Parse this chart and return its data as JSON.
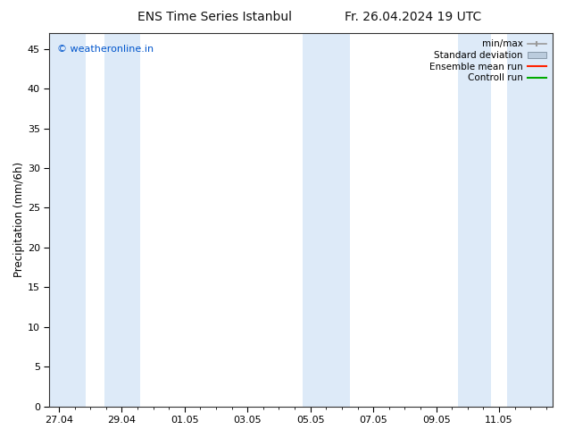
{
  "title": "ENS Time Series Istanbul",
  "title_right": "Fr. 26.04.2024 19 UTC",
  "ylabel": "Precipitation (mm/6h)",
  "xlabel": "",
  "ylim": [
    0,
    47
  ],
  "yticks": [
    0,
    5,
    10,
    15,
    20,
    25,
    30,
    35,
    40,
    45
  ],
  "xtick_labels": [
    "27.04",
    "29.04",
    "01.05",
    "03.05",
    "05.05",
    "07.05",
    "09.05",
    "11.05"
  ],
  "xtick_positions": [
    0,
    2,
    4,
    6,
    8,
    10,
    12,
    14
  ],
  "xlim": [
    -0.3,
    15.7
  ],
  "watermark": "© weatheronline.in",
  "watermark_color": "#0055cc",
  "background_color": "#ffffff",
  "shaded_band_color": "#ddeaf8",
  "shaded_bands": [
    [
      -0.3,
      0.85
    ],
    [
      1.45,
      2.6
    ],
    [
      7.75,
      9.25
    ],
    [
      12.7,
      13.75
    ],
    [
      14.25,
      15.7
    ]
  ],
  "legend_labels": [
    "min/max",
    "Standard deviation",
    "Ensemble mean run",
    "Controll run"
  ],
  "minmax_color": "#999999",
  "std_color": "#bbccdd",
  "mean_color": "#ff2200",
  "ctrl_color": "#00aa00",
  "title_fontsize": 10,
  "tick_fontsize": 8,
  "ylabel_fontsize": 8.5,
  "watermark_fontsize": 8,
  "legend_fontsize": 7.5
}
